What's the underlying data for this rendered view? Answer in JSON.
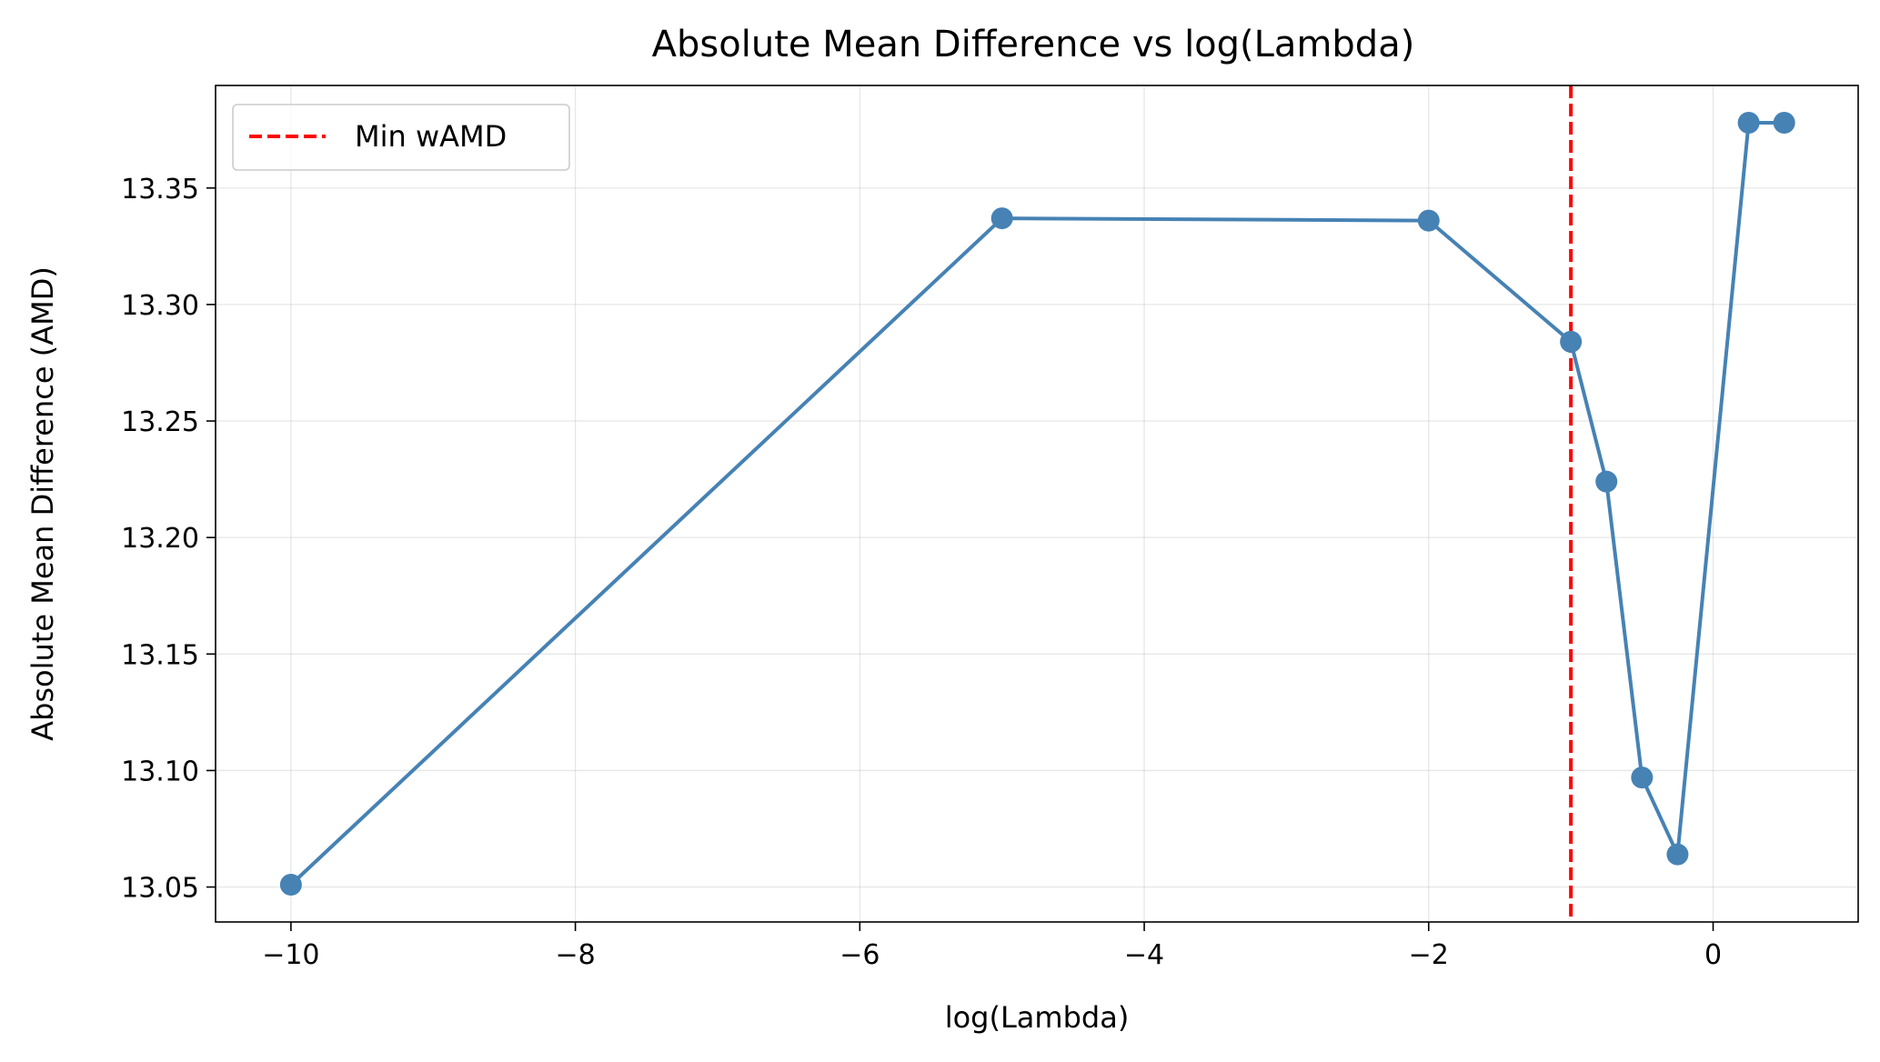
{
  "chart_data": {
    "type": "line",
    "title": "Absolute Mean Difference vs log(Lambda)",
    "xlabel": "log(Lambda)",
    "ylabel": "Absolute Mean Difference (AMD)",
    "xlim": [
      -10.53,
      1.02
    ],
    "ylim": [
      13.035,
      13.394
    ],
    "xticks": [
      -10,
      -8,
      -6,
      -4,
      -2,
      0
    ],
    "xtick_labels": [
      "−10",
      "−8",
      "−6",
      "−4",
      "−2",
      "0"
    ],
    "yticks": [
      13.05,
      13.1,
      13.15,
      13.2,
      13.25,
      13.3,
      13.35
    ],
    "ytick_labels": [
      "13.05",
      "13.10",
      "13.15",
      "13.20",
      "13.25",
      "13.30",
      "13.35"
    ],
    "grid": true,
    "legend_position": "top-left",
    "series": [
      {
        "color": "#4682b4",
        "marker": "circle",
        "x": [
          -10,
          -5,
          -2,
          -1,
          -0.75,
          -0.5,
          -0.25,
          0.25,
          0.5
        ],
        "y": [
          13.051,
          13.337,
          13.336,
          13.284,
          13.224,
          13.097,
          13.064,
          13.378,
          13.378
        ]
      }
    ],
    "reference_lines": [
      {
        "name": "Min wAMD",
        "orientation": "vertical",
        "x": -1,
        "color": "#ff0000",
        "style": "dashed"
      }
    ]
  }
}
